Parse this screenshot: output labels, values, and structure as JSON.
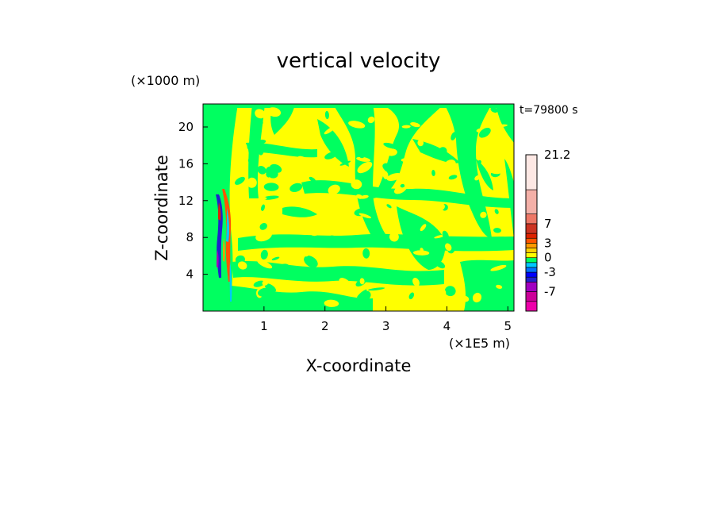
{
  "chart_data": {
    "type": "heatmap",
    "title": "vertical velocity",
    "xlabel": "X-coordinate",
    "ylabel": "Z-coordinate",
    "x_unit": "(×1E5 m)",
    "y_unit": "(×1000 m)",
    "time_label": "t=79800 s",
    "xlim": [
      0,
      5.1
    ],
    "ylim": [
      0,
      22.5
    ],
    "x_ticks": [
      1,
      2,
      3,
      4,
      5
    ],
    "y_ticks": [
      4,
      8,
      12,
      16,
      20
    ],
    "colorbar": {
      "labels": [
        "21.2",
        "7",
        "3",
        "0",
        "-3",
        "-7"
      ],
      "levels": [
        -11,
        -9,
        -7,
        -5,
        -4,
        -3,
        -2,
        -1,
        0,
        1,
        2,
        3,
        4,
        5,
        7,
        9,
        14,
        21.2
      ],
      "colors": [
        "#ee00aa",
        "#cc0099",
        "#a000c0",
        "#2020cc",
        "#0000ff",
        "#0070ff",
        "#00c8ff",
        "#00ff60",
        "#ffff00",
        "#ffd000",
        "#ff9900",
        "#ff5500",
        "#dd2200",
        "#cc3322",
        "#ee7766",
        "#f4b0a8",
        "#fde8e4"
      ]
    },
    "background_color": "#ffff00",
    "primary_color": "#00ff60"
  }
}
